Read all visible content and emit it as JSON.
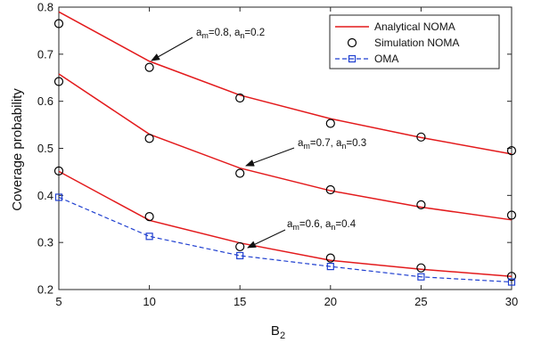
{
  "chart_data": {
    "type": "line",
    "x": [
      5,
      10,
      15,
      20,
      25,
      30
    ],
    "xlim": [
      5,
      30
    ],
    "ylim": [
      0.2,
      0.8
    ],
    "xticks": [
      5,
      10,
      15,
      20,
      25,
      30
    ],
    "yticks": [
      0.2,
      0.3,
      0.4,
      0.5,
      0.6,
      0.7,
      0.8
    ],
    "xlabel": {
      "base": "B",
      "sub": "2"
    },
    "ylabel": "Coverage probability",
    "grid": false,
    "legend_position": "top-right",
    "series": [
      {
        "key": "analytical_08",
        "legend": "Analytical NOMA",
        "style": "line",
        "color": "#e31a1c",
        "values": [
          0.79,
          0.685,
          0.613,
          0.563,
          0.523,
          0.488
        ]
      },
      {
        "key": "analytical_07",
        "style": "line",
        "color": "#e31a1c",
        "values": [
          0.658,
          0.53,
          0.458,
          0.41,
          0.375,
          0.348
        ]
      },
      {
        "key": "analytical_06",
        "style": "line",
        "color": "#e31a1c",
        "values": [
          0.451,
          0.347,
          0.299,
          0.262,
          0.243,
          0.228
        ]
      },
      {
        "key": "simulation_08",
        "legend": "Simulation NOMA",
        "style": "markers",
        "marker": "circle",
        "color": "#000000",
        "values": [
          0.765,
          0.672,
          0.607,
          0.553,
          0.524,
          0.495
        ]
      },
      {
        "key": "simulation_07",
        "style": "markers",
        "marker": "circle",
        "color": "#000000",
        "values": [
          0.642,
          0.521,
          0.447,
          0.412,
          0.38,
          0.358
        ]
      },
      {
        "key": "simulation_06",
        "style": "markers",
        "marker": "circle",
        "color": "#000000",
        "values": [
          0.452,
          0.355,
          0.291,
          0.267,
          0.246,
          0.228
        ]
      },
      {
        "key": "oma",
        "legend": "OMA",
        "style": "dashed-line-with-square-markers",
        "color": "#1f3fd0",
        "values": [
          0.396,
          0.313,
          0.272,
          0.249,
          0.227,
          0.216
        ]
      }
    ],
    "annotations": [
      {
        "key": "ann1",
        "parts": [
          {
            "t": "a",
            "sub": false
          },
          {
            "t": "m",
            "sub": true
          },
          {
            "t": "=0.8, a",
            "sub": false
          },
          {
            "t": "n",
            "sub": true
          },
          {
            "t": "=0.2",
            "sub": false
          }
        ],
        "arrow_to": [
          10,
          0.685
        ]
      },
      {
        "key": "ann2",
        "parts": [
          {
            "t": "a",
            "sub": false
          },
          {
            "t": "m",
            "sub": true
          },
          {
            "t": "=0.7, a",
            "sub": false
          },
          {
            "t": "n",
            "sub": true
          },
          {
            "t": "=0.3",
            "sub": false
          }
        ],
        "arrow_to": [
          15,
          0.458
        ]
      },
      {
        "key": "ann3",
        "parts": [
          {
            "t": "a",
            "sub": false
          },
          {
            "t": "m",
            "sub": true
          },
          {
            "t": "=0.6, a",
            "sub": false
          },
          {
            "t": "n",
            "sub": true
          },
          {
            "t": "=0.4",
            "sub": false
          }
        ],
        "arrow_to": [
          15,
          0.299
        ]
      }
    ],
    "colors": {
      "analytical": "#e31a1c",
      "simulation": "#000000",
      "oma": "#1f3fd0",
      "axis": "#262626"
    }
  }
}
